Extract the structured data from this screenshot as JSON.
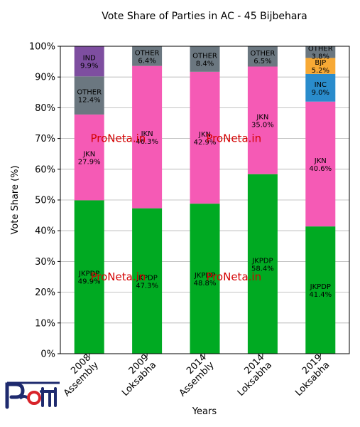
{
  "chart_data": {
    "type": "bar",
    "stacked": true,
    "title": "Vote Share of Parties in AC - 45 Bijbehara",
    "xlabel": "Years",
    "ylabel": "Vote Share (%)",
    "ylim": [
      0,
      100
    ],
    "yticks": [
      0,
      10,
      20,
      30,
      40,
      50,
      60,
      70,
      80,
      90,
      100
    ],
    "ytick_suffix": "%",
    "grid": "horizontal",
    "categories": [
      [
        "2008",
        "Assembly"
      ],
      [
        "2009",
        "Loksabha"
      ],
      [
        "2014",
        "Assembly"
      ],
      [
        "2014",
        "Loksabha"
      ],
      [
        "2019",
        "Loksabha"
      ]
    ],
    "stacks": [
      [
        {
          "party": "JKPDP",
          "value": 49.9,
          "color": "#00aa22"
        },
        {
          "party": "JKN",
          "value": 27.9,
          "color": "#f55ab5"
        },
        {
          "party": "OTHER",
          "value": 12.4,
          "color": "#6b7780"
        },
        {
          "party": "IND",
          "value": 9.9,
          "color": "#7e4ea0"
        }
      ],
      [
        {
          "party": "JKPDP",
          "value": 47.3,
          "color": "#00aa22"
        },
        {
          "party": "JKN",
          "value": 46.3,
          "color": "#f55ab5"
        },
        {
          "party": "OTHER",
          "value": 6.4,
          "color": "#6b7780"
        }
      ],
      [
        {
          "party": "JKPDP",
          "value": 48.8,
          "color": "#00aa22"
        },
        {
          "party": "JKN",
          "value": 42.9,
          "color": "#f55ab5"
        },
        {
          "party": "OTHER",
          "value": 8.4,
          "color": "#6b7780"
        }
      ],
      [
        {
          "party": "JKPDP",
          "value": 58.4,
          "color": "#00aa22"
        },
        {
          "party": "JKN",
          "value": 35.0,
          "color": "#f55ab5"
        },
        {
          "party": "OTHER",
          "value": 6.5,
          "color": "#6b7780"
        }
      ],
      [
        {
          "party": "JKPDP",
          "value": 41.4,
          "color": "#00aa22"
        },
        {
          "party": "JKN",
          "value": 40.6,
          "color": "#f55ab5"
        },
        {
          "party": "INC",
          "value": 9.0,
          "color": "#2a8ccc"
        },
        {
          "party": "BJP",
          "value": 5.2,
          "color": "#f7a935"
        },
        {
          "party": "OTHER",
          "value": 3.8,
          "color": "#6b7780"
        }
      ]
    ],
    "watermark": "ProNeta.in",
    "watermark_color": "#d40000"
  },
  "logo": {
    "name": "proneta-logo-icon",
    "colors": {
      "navy": "#1e2a6e",
      "red": "#d8232a"
    }
  }
}
